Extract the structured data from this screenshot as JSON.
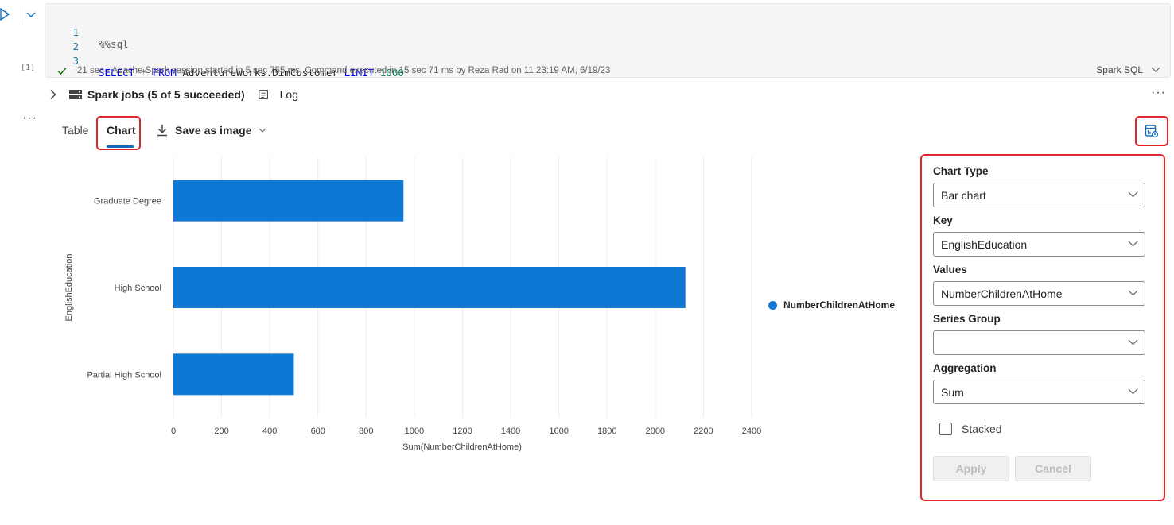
{
  "cell": {
    "execution_count": "[1]",
    "code_lines": [
      {
        "num": "1",
        "magic": "%%sql"
      },
      {
        "num": "2"
      },
      {
        "num": "3",
        "kw1": "SELECT",
        "op": "*",
        "kw2": "FROM",
        "table": "AdventureWorks.DimCustomer",
        "kw3": "LIMIT",
        "limit": "1000"
      }
    ],
    "status": "21 sec - Apache Spark session started in 5 sec 755 ms. Command executed in 15 sec 71 ms by Reza Rad on 11:23:19 AM, 6/19/23",
    "language": "Spark SQL"
  },
  "output": {
    "spark_jobs_label": "Spark jobs (5 of 5 succeeded)",
    "log_label": "Log",
    "more_label": "···",
    "tabs": [
      {
        "label": "Table"
      },
      {
        "label": "Chart"
      }
    ],
    "save_as_image_label": "Save as image"
  },
  "chart_data": {
    "type": "bar",
    "orientation": "horizontal",
    "categories": [
      "Graduate Degree",
      "High School",
      "Partial High School"
    ],
    "series": [
      {
        "name": "NumberChildrenAtHome",
        "values": [
          955,
          2125,
          500
        ]
      }
    ],
    "xlabel": "Sum(NumberChildrenAtHome)",
    "ylabel": "EnglishEducation",
    "xlim": [
      0,
      2400
    ],
    "xticks": [
      "0",
      "200",
      "400",
      "600",
      "800",
      "1000",
      "1200",
      "1400",
      "1600",
      "1800",
      "2000",
      "2200",
      "2400"
    ],
    "grid": true,
    "legend_placement": "right",
    "bar_color": "#0f78d4"
  },
  "settings_panel": {
    "chart_type": {
      "label": "Chart Type",
      "value": "Bar chart"
    },
    "key": {
      "label": "Key",
      "value": "EnglishEducation"
    },
    "values": {
      "label": "Values",
      "value": "NumberChildrenAtHome"
    },
    "series_group": {
      "label": "Series Group",
      "value": ""
    },
    "aggregation": {
      "label": "Aggregation",
      "value": "Sum"
    },
    "stacked_label": "Stacked",
    "stacked_checked": false,
    "apply_label": "Apply",
    "cancel_label": "Cancel"
  },
  "colors": {
    "accent": "#0f6cbd",
    "highlight_border": "#e0242a",
    "success": "#107c10"
  }
}
